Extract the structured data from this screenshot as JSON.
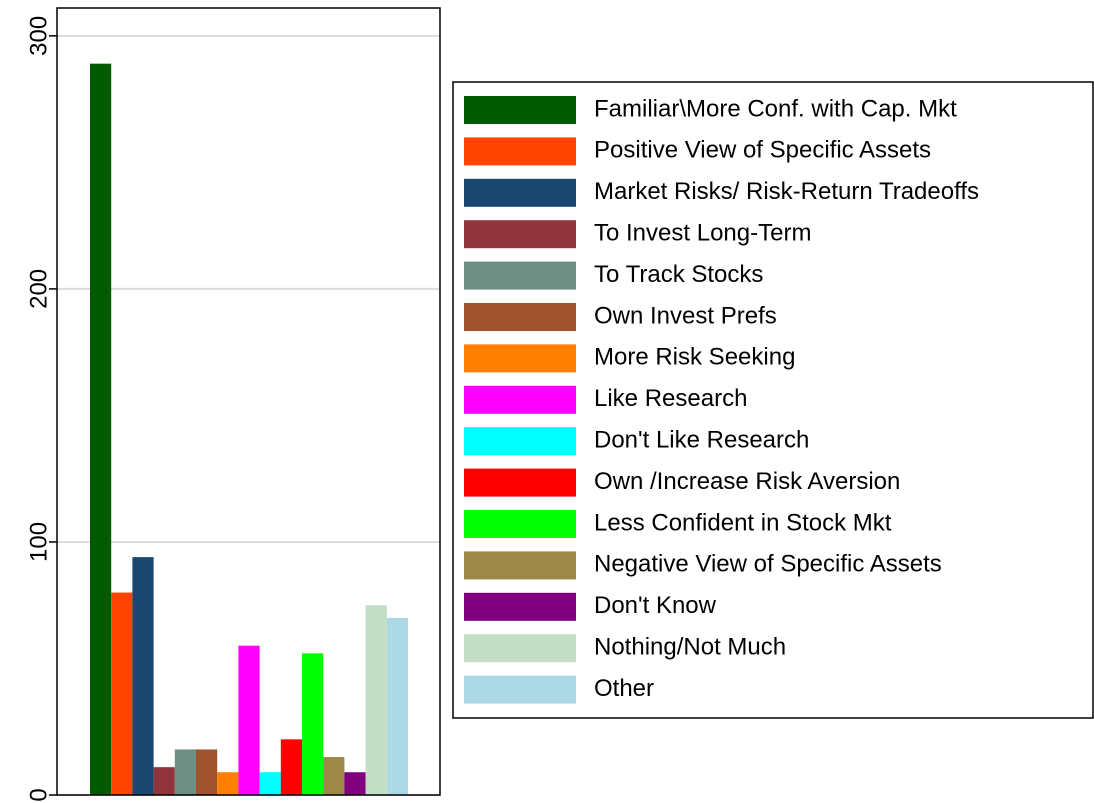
{
  "chart_data": {
    "type": "bar",
    "ylim": [
      0,
      311
    ],
    "yticks": [
      0,
      100,
      200,
      300
    ],
    "grid": true,
    "legend": "right",
    "series": [
      {
        "name": "Familiar\\More Conf. with Cap. Mkt",
        "color": "#005a00",
        "values": [
          289
        ]
      },
      {
        "name": "Positive View of Specific Assets",
        "color": "#ff4500",
        "values": [
          80
        ]
      },
      {
        "name": "Market Risks/ Risk-Return Tradeoffs",
        "color": "#1a476f",
        "values": [
          94
        ]
      },
      {
        "name": "To Invest Long-Term",
        "color": "#90353b",
        "values": [
          11
        ]
      },
      {
        "name": "To Track Stocks",
        "color": "#6e8e84",
        "values": [
          18
        ]
      },
      {
        "name": "Own Invest Prefs",
        "color": "#a0522d",
        "values": [
          18
        ]
      },
      {
        "name": "More Risk Seeking",
        "color": "#ff7f00",
        "values": [
          9
        ]
      },
      {
        "name": "Like Research",
        "color": "#ff00ff",
        "values": [
          59
        ]
      },
      {
        "name": "Don't Like Research",
        "color": "#00ffff",
        "values": [
          9
        ]
      },
      {
        "name": "Own /Increase Risk Aversion",
        "color": "#ff0000",
        "values": [
          22
        ]
      },
      {
        "name": "Less Confident in Stock Mkt",
        "color": "#00ff00",
        "values": [
          56
        ]
      },
      {
        "name": "Negative View of Specific Assets",
        "color": "#9c8847",
        "values": [
          15
        ]
      },
      {
        "name": "Don't Know",
        "color": "#800080",
        "values": [
          9
        ]
      },
      {
        "name": "Nothing/Not Much",
        "color": "#c3dec5",
        "values": [
          75
        ]
      },
      {
        "name": "Other",
        "color": "#add8e6",
        "values": [
          70
        ]
      }
    ]
  }
}
